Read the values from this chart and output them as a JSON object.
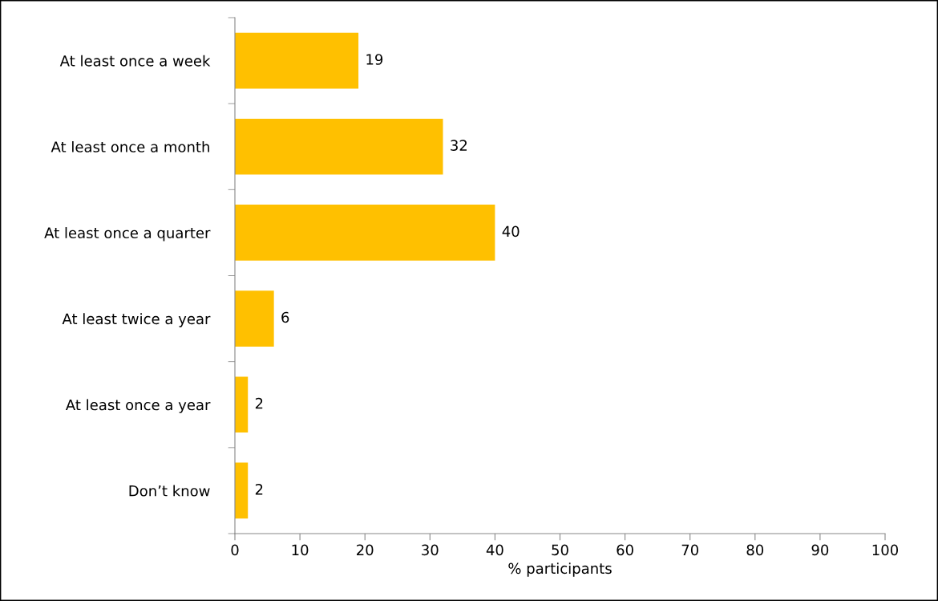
{
  "chart_data": {
    "type": "bar",
    "orientation": "horizontal",
    "xlabel": "% participants",
    "categories": [
      "At least once a week",
      "At least once a month",
      "At least once a quarter",
      "At least twice a year",
      "At least once a year",
      "Don’t know"
    ],
    "values": [
      19,
      32,
      40,
      6,
      2,
      2
    ],
    "color": "#ffc000",
    "xlim": [
      0,
      100
    ],
    "xticks": [
      0,
      10,
      20,
      30,
      40,
      50,
      60,
      70,
      80,
      90,
      100
    ],
    "data_labels": true,
    "grid": false
  }
}
